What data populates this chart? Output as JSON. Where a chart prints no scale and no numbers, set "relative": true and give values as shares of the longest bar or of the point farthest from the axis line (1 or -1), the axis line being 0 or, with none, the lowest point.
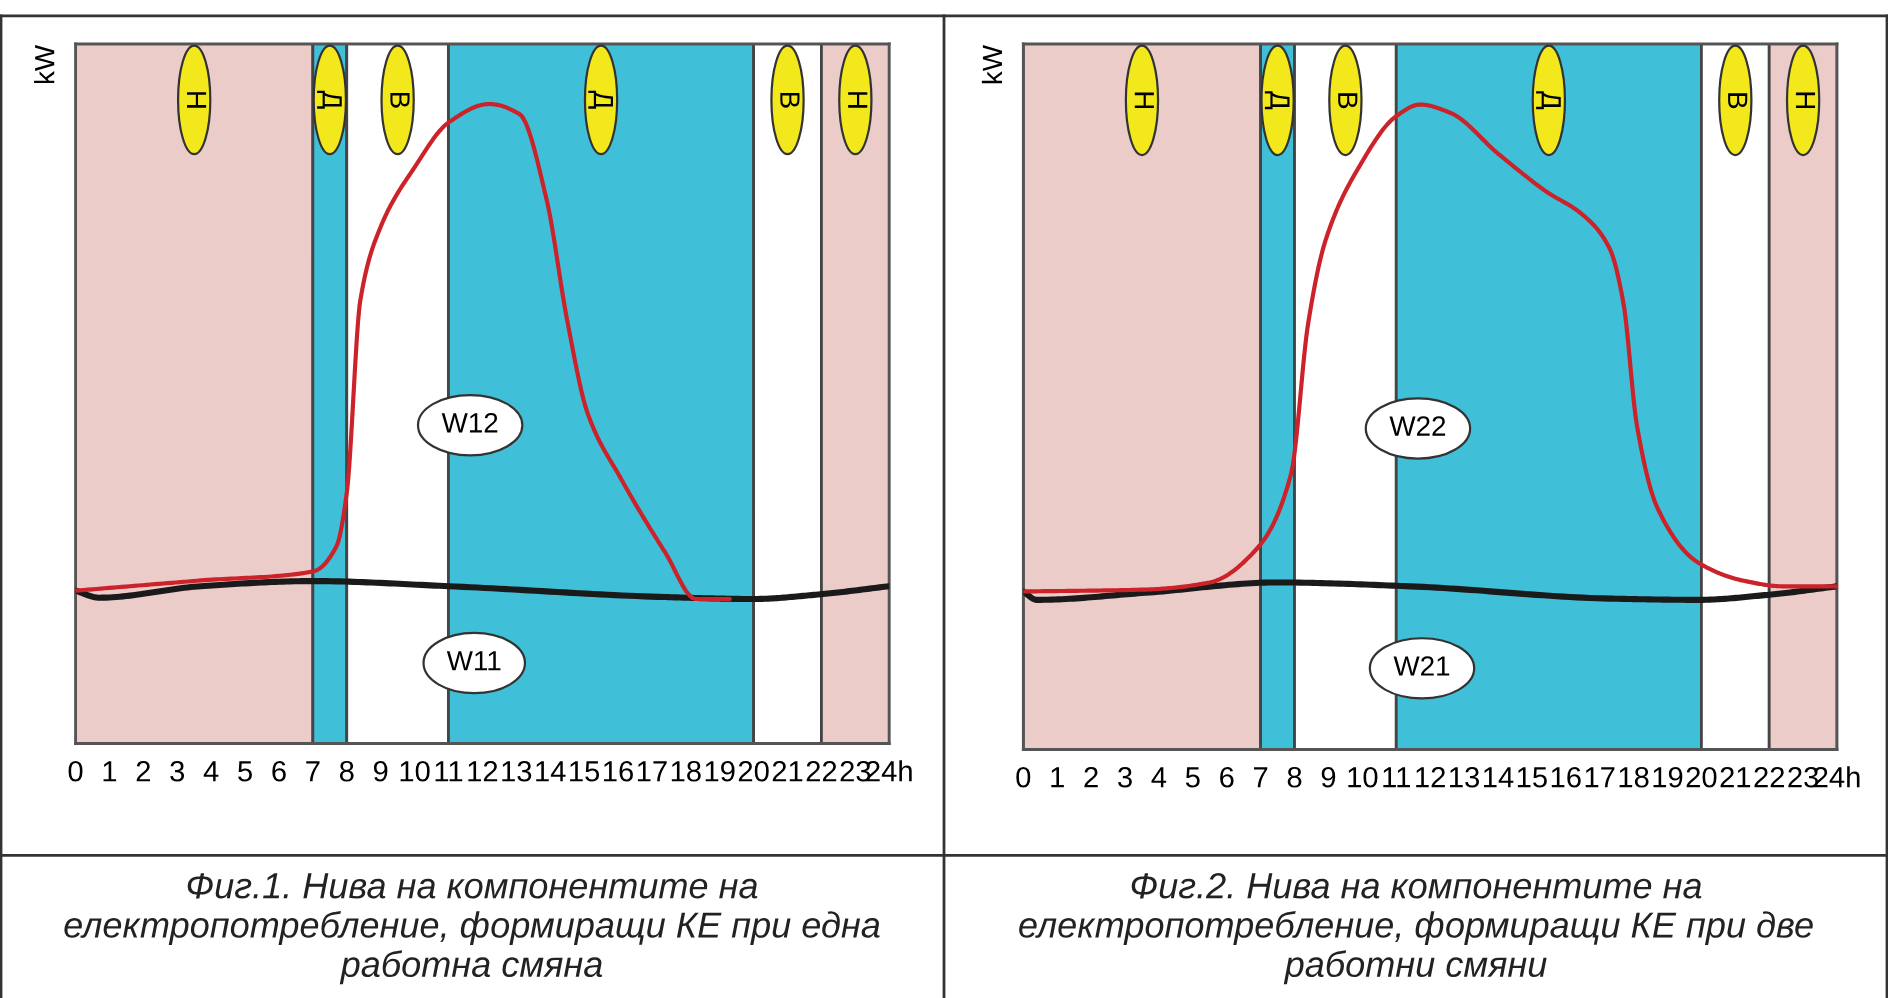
{
  "chart_data": [
    {
      "type": "line",
      "relative": true,
      "ylabel": "kW",
      "xlim": [
        0,
        24
      ],
      "xticks": [
        0,
        1,
        2,
        3,
        4,
        5,
        6,
        7,
        8,
        9,
        10,
        11,
        12,
        13,
        14,
        15,
        16,
        17,
        18,
        19,
        20,
        21,
        22,
        23,
        {
          "value": 24,
          "label": "24h"
        }
      ],
      "tick_labels": "x",
      "grid": false,
      "legend": false,
      "marker": "none",
      "line_style": "solid",
      "series": [
        {
          "color": "#1a1a1a",
          "x": [
            0,
            0.7,
            3.7,
            7,
            11,
            17.4,
            20,
            21.9,
            24
          ],
          "values": [
            0.239,
            0.228,
            0.246,
            0.254,
            0.246,
            0.229,
            0.226,
            0.233,
            0.246
          ]
        },
        {
          "color": "#cc2229",
          "x": [
            0,
            3.7,
            7,
            7.7,
            8.0,
            8.4,
            9.0,
            10.0,
            11.0,
            12.2,
            13.1,
            13.9,
            14.5,
            15.1,
            16.1,
            17.4,
            18.3,
            19.3
          ],
          "values": [
            0.239,
            0.255,
            0.269,
            0.309,
            0.392,
            0.693,
            0.808,
            0.901,
            0.971,
            1.0,
            0.984,
            0.849,
            0.662,
            0.517,
            0.413,
            0.298,
            0.226,
            0.226
          ]
        }
      ],
      "bands": [
        {
          "axis": "x",
          "from": 0,
          "to": 7,
          "label": "Н",
          "color": "#ecccc9"
        },
        {
          "axis": "x",
          "from": 7,
          "to": 8,
          "label": "Д",
          "color": "#3fc0d8"
        },
        {
          "axis": "x",
          "from": 8,
          "to": 11,
          "label": "В",
          "color": "#ffffff"
        },
        {
          "axis": "x",
          "from": 11,
          "to": 20,
          "label": "Д",
          "color": "#3fc0d8"
        },
        {
          "axis": "x",
          "from": 20,
          "to": 22,
          "label": "В",
          "color": "#ffffff"
        },
        {
          "axis": "x",
          "from": 22,
          "to": 24,
          "label": "Н",
          "color": "#ecccc9"
        }
      ],
      "annotations": [
        "W12",
        "W11",
        "Фиг.1. Нива на компонентите на електропотребление, формиращи КЕ при една работна смяна"
      ]
    },
    {
      "type": "line",
      "relative": true,
      "ylabel": "kW",
      "xlim": [
        0,
        24
      ],
      "xticks": [
        0,
        1,
        2,
        3,
        4,
        5,
        6,
        7,
        8,
        9,
        10,
        11,
        12,
        13,
        14,
        15,
        16,
        17,
        18,
        19,
        20,
        21,
        22,
        23,
        {
          "value": 24,
          "label": "24h"
        }
      ],
      "tick_labels": "x",
      "grid": false,
      "legend": false,
      "marker": "none",
      "line_style": "solid",
      "series": [
        {
          "color": "#1a1a1a",
          "x": [
            0,
            0.4,
            3.6,
            7.5,
            11.4,
            17.3,
            19.9,
            22,
            24
          ],
          "values": [
            0.245,
            0.232,
            0.243,
            0.259,
            0.253,
            0.234,
            0.232,
            0.24,
            0.253
          ]
        },
        {
          "color": "#cc2229",
          "x": [
            0,
            3.6,
            5.5,
            6.9,
            7.9,
            8.4,
            8.9,
            9.9,
            11.0,
            11.7,
            12.6,
            14.0,
            15.4,
            16.5,
            17.3,
            17.7,
            18.1,
            18.7,
            19.9,
            21.3,
            22.4,
            24
          ],
          "values": [
            0.245,
            0.248,
            0.259,
            0.312,
            0.428,
            0.66,
            0.787,
            0.903,
            0.982,
            1.0,
            0.987,
            0.924,
            0.866,
            0.829,
            0.776,
            0.692,
            0.502,
            0.375,
            0.29,
            0.261,
            0.253,
            0.253
          ]
        }
      ],
      "bands": [
        {
          "axis": "x",
          "from": 0,
          "to": 7,
          "label": "Н",
          "color": "#ecccc9"
        },
        {
          "axis": "x",
          "from": 7,
          "to": 8,
          "label": "Д",
          "color": "#3fc0d8"
        },
        {
          "axis": "x",
          "from": 8,
          "to": 11,
          "label": "В",
          "color": "#ffffff"
        },
        {
          "axis": "x",
          "from": 11,
          "to": 20,
          "label": "Д",
          "color": "#3fc0d8"
        },
        {
          "axis": "x",
          "from": 20,
          "to": 22,
          "label": "В",
          "color": "#ffffff"
        },
        {
          "axis": "x",
          "from": 22,
          "to": 24,
          "label": "Н",
          "color": "#ecccc9"
        }
      ],
      "annotations": [
        "W22",
        "W21",
        "Фиг.2. Нива на компонентите на електропотребление, формиращи КЕ при две работни смяни"
      ]
    }
  ]
}
